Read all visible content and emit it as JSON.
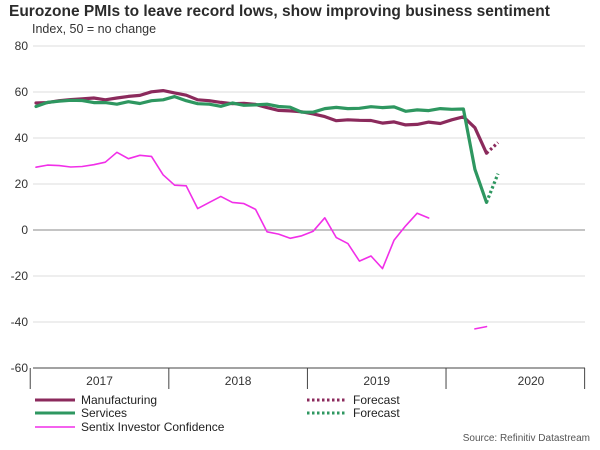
{
  "title": "Eurozone PMIs to leave record lows, show improving business sentiment",
  "subtitle": "Index, 50 = no change",
  "source": "Source: Refinitiv Datastream",
  "colors": {
    "manufacturing": "#8b2a5c",
    "services": "#2e9760",
    "sentix": "#f12fe8",
    "grid": "#dcdcdc",
    "zero": "#888888"
  },
  "chart_data": {
    "type": "line",
    "title": "Eurozone PMIs to leave record lows, show improving business sentiment",
    "subtitle": "Index, 50 = no change",
    "ylim": [
      -60,
      80
    ],
    "yticks": [
      80,
      60,
      40,
      20,
      0,
      -20,
      -40,
      -60
    ],
    "year_labels": [
      "2017",
      "2018",
      "2019",
      "2020"
    ],
    "grid": "horizontal",
    "legend_position": "bottom",
    "x": [
      "2017-01",
      "2017-02",
      "2017-03",
      "2017-04",
      "2017-05",
      "2017-06",
      "2017-07",
      "2017-08",
      "2017-09",
      "2017-10",
      "2017-11",
      "2017-12",
      "2018-01",
      "2018-02",
      "2018-03",
      "2018-04",
      "2018-05",
      "2018-06",
      "2018-07",
      "2018-08",
      "2018-09",
      "2018-10",
      "2018-11",
      "2018-12",
      "2019-01",
      "2019-02",
      "2019-03",
      "2019-04",
      "2019-05",
      "2019-06",
      "2019-07",
      "2019-08",
      "2019-09",
      "2019-10",
      "2019-11",
      "2019-12",
      "2020-01",
      "2020-02",
      "2020-03",
      "2020-04",
      "2020-05"
    ],
    "series": [
      {
        "name": "Manufacturing",
        "key": "manufacturing",
        "values": [
          55.2,
          55.4,
          56.2,
          56.7,
          57.0,
          57.4,
          56.6,
          57.4,
          58.1,
          58.5,
          60.1,
          60.6,
          59.6,
          58.6,
          56.6,
          56.2,
          55.5,
          54.9,
          55.1,
          54.6,
          53.2,
          52.0,
          51.8,
          51.4,
          50.5,
          49.3,
          47.5,
          47.9,
          47.7,
          47.6,
          46.5,
          47.0,
          45.7,
          45.9,
          46.9,
          46.3,
          47.9,
          49.2,
          44.5,
          33.4,
          null
        ]
      },
      {
        "name": "Forecast",
        "key": "manufacturing",
        "values": [
          null,
          null,
          null,
          null,
          null,
          null,
          null,
          null,
          null,
          null,
          null,
          null,
          null,
          null,
          null,
          null,
          null,
          null,
          null,
          null,
          null,
          null,
          null,
          null,
          null,
          null,
          null,
          null,
          null,
          null,
          null,
          null,
          null,
          null,
          null,
          null,
          null,
          null,
          null,
          33.4,
          38.0
        ]
      },
      {
        "name": "Services",
        "key": "services",
        "values": [
          53.7,
          55.5,
          56.0,
          56.4,
          56.3,
          55.4,
          55.4,
          54.7,
          55.8,
          55.0,
          56.2,
          56.6,
          58.0,
          56.2,
          54.9,
          54.7,
          53.8,
          55.2,
          54.2,
          54.4,
          54.7,
          53.7,
          53.4,
          51.2,
          51.2,
          52.8,
          53.3,
          52.8,
          52.9,
          53.6,
          53.2,
          53.5,
          51.6,
          52.2,
          51.9,
          52.8,
          52.5,
          52.6,
          26.4,
          12.0,
          null
        ]
      },
      {
        "name": "Forecast",
        "key": "services",
        "values": [
          null,
          null,
          null,
          null,
          null,
          null,
          null,
          null,
          null,
          null,
          null,
          null,
          null,
          null,
          null,
          null,
          null,
          null,
          null,
          null,
          null,
          null,
          null,
          null,
          null,
          null,
          null,
          null,
          null,
          null,
          null,
          null,
          null,
          null,
          null,
          null,
          null,
          null,
          null,
          12.0,
          24.5
        ]
      },
      {
        "name": "Sentix Investor Confidence",
        "key": "sentix",
        "values": [
          27.3,
          28.2,
          28.0,
          27.4,
          27.6,
          28.4,
          29.5,
          33.8,
          31.0,
          32.5,
          32.0,
          24.0,
          19.5,
          19.2,
          9.3,
          12.0,
          14.6,
          12.0,
          11.5,
          9.0,
          -0.8,
          -1.8,
          -3.6,
          -2.5,
          -0.5,
          5.3,
          -3.3,
          -5.9,
          -13.5,
          -11.3,
          -16.8,
          -4.4,
          1.8,
          7.3,
          5.2,
          null,
          null,
          null,
          -43.0,
          -42.0,
          null
        ]
      }
    ]
  },
  "legend": [
    {
      "label": "Manufacturing",
      "key": "manufacturing",
      "dashed": false
    },
    {
      "label": "Forecast",
      "key": "manufacturing",
      "dashed": true
    },
    {
      "label": "Services",
      "key": "services",
      "dashed": false
    },
    {
      "label": "Forecast",
      "key": "services",
      "dashed": true
    },
    {
      "label": "Sentix Investor Confidence",
      "key": "sentix",
      "dashed": false
    }
  ]
}
